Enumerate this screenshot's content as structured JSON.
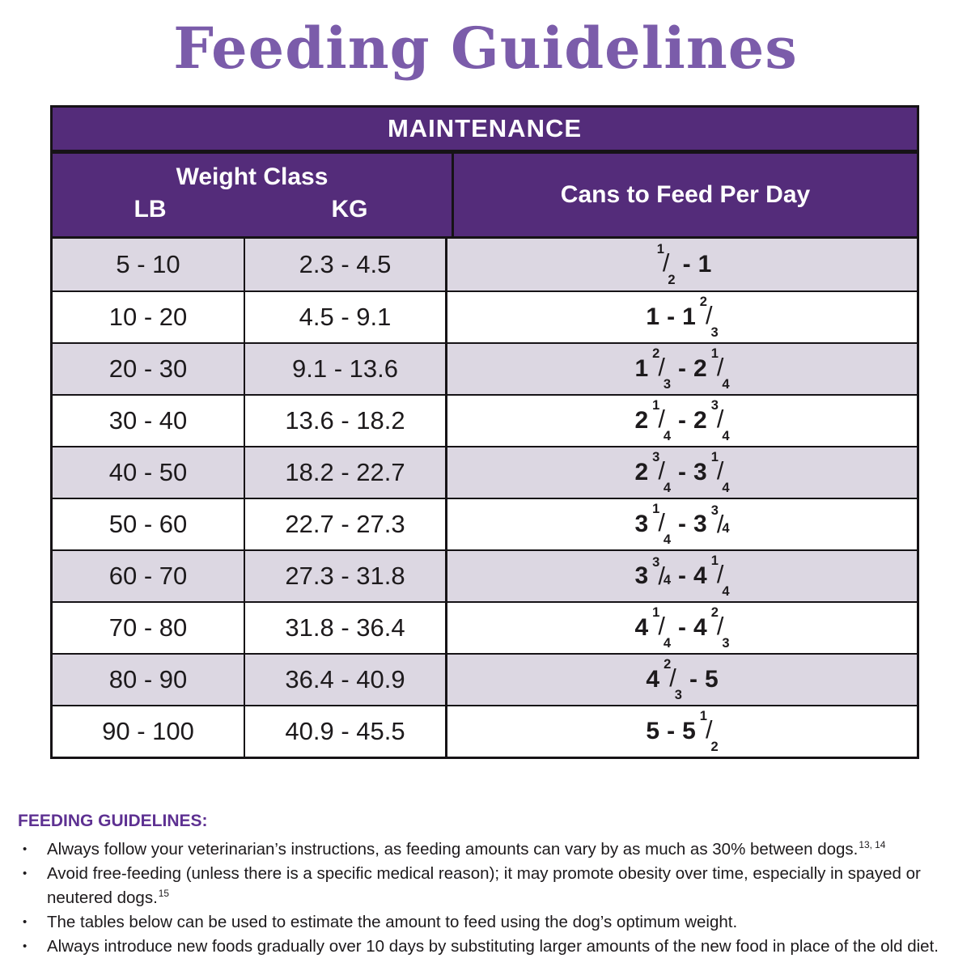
{
  "page": {
    "title": "Feeding Guidelines"
  },
  "colors": {
    "table_header_purple": "#542c7a",
    "title_purple": "#7b5caa",
    "footer_heading_purple": "#5e3192",
    "alt_row_lavender": "#dcd7e2",
    "border_black": "#161316",
    "text_black": "#1d1a1c"
  },
  "table": {
    "title": "MAINTENANCE",
    "weight_class_header": "Weight Class",
    "lb_header": "LB",
    "kg_header": "KG",
    "cans_header": "Cans to Feed Per Day",
    "rows": [
      {
        "lb": "5 - 10",
        "kg": "2.3 - 4.5",
        "cans_text": "1/2 - 1",
        "low": {
          "whole": "",
          "num": "1",
          "den": "2",
          "style": "split"
        },
        "high": {
          "whole": "1"
        }
      },
      {
        "lb": "10 - 20",
        "kg": "4.5 - 9.1",
        "cans_text": "1 - 1 2/3",
        "low": {
          "whole": "1"
        },
        "high": {
          "whole": "1",
          "num": "2",
          "den": "3",
          "style": "split"
        }
      },
      {
        "lb": "20 - 30",
        "kg": "9.1 - 13.6",
        "cans_text": "1 2/3 - 2 1/4",
        "low": {
          "whole": "1",
          "num": "2",
          "den": "3",
          "style": "split"
        },
        "high": {
          "whole": "2",
          "num": "1",
          "den": "4",
          "style": "split"
        }
      },
      {
        "lb": "30 - 40",
        "kg": "13.6 - 18.2",
        "cans_text": "2 1/4 - 2 3/4",
        "low": {
          "whole": "2",
          "num": "1",
          "den": "4",
          "style": "split"
        },
        "high": {
          "whole": "2",
          "num": "3",
          "den": "4",
          "style": "split"
        }
      },
      {
        "lb": "40 - 50",
        "kg": "18.2 - 22.7",
        "cans_text": "2 3/4 - 3 1/4",
        "low": {
          "whole": "2",
          "num": "3",
          "den": "4",
          "style": "split"
        },
        "high": {
          "whole": "3",
          "num": "1",
          "den": "4",
          "style": "split"
        }
      },
      {
        "lb": "50 - 60",
        "kg": "22.7 - 27.3",
        "cans_text": "3 1/4 - 3 3/4",
        "low": {
          "whole": "3",
          "num": "1",
          "den": "4",
          "style": "split"
        },
        "high": {
          "whole": "3",
          "num": "3",
          "den": "4",
          "style": "inline"
        }
      },
      {
        "lb": "60 - 70",
        "kg": "27.3 - 31.8",
        "cans_text": "3 3/4 - 4 1/4",
        "low": {
          "whole": "3",
          "num": "3",
          "den": "4",
          "style": "inline"
        },
        "high": {
          "whole": "4",
          "num": "1",
          "den": "4",
          "style": "split"
        }
      },
      {
        "lb": "70 - 80",
        "kg": "31.8 - 36.4",
        "cans_text": "4 1/4 - 4 2/3",
        "low": {
          "whole": "4",
          "num": "1",
          "den": "4",
          "style": "split"
        },
        "high": {
          "whole": "4",
          "num": "2",
          "den": "3",
          "style": "split"
        }
      },
      {
        "lb": "80 - 90",
        "kg": "36.4 - 40.9",
        "cans_text": "4 2/3 - 5",
        "low": {
          "whole": "4",
          "num": "2",
          "den": "3",
          "style": "split"
        },
        "high": {
          "whole": "5"
        }
      },
      {
        "lb": "90 - 100",
        "kg": "40.9 - 45.5",
        "cans_text": "5 - 5 1/2",
        "low": {
          "whole": "5"
        },
        "high": {
          "whole": "5",
          "num": "1",
          "den": "2",
          "style": "split"
        }
      }
    ]
  },
  "footer": {
    "heading": "FEEDING GUIDELINES:",
    "bullets": [
      {
        "text": "Always follow your veterinarian’s instructions, as feeding amounts can vary by as much as 30% between dogs.",
        "sup": "13, 14"
      },
      {
        "text": "Avoid free-feeding (unless there is a specific medical reason); it may promote obesity over time, especially in spayed or neutered dogs.",
        "sup": "15"
      },
      {
        "text": "The tables below can be used to estimate the amount to feed using the dog’s optimum weight.",
        "sup": ""
      },
      {
        "text": "Always introduce new foods gradually over 10 days by substituting larger amounts of the new food in place of the old diet.",
        "sup": ""
      }
    ]
  }
}
